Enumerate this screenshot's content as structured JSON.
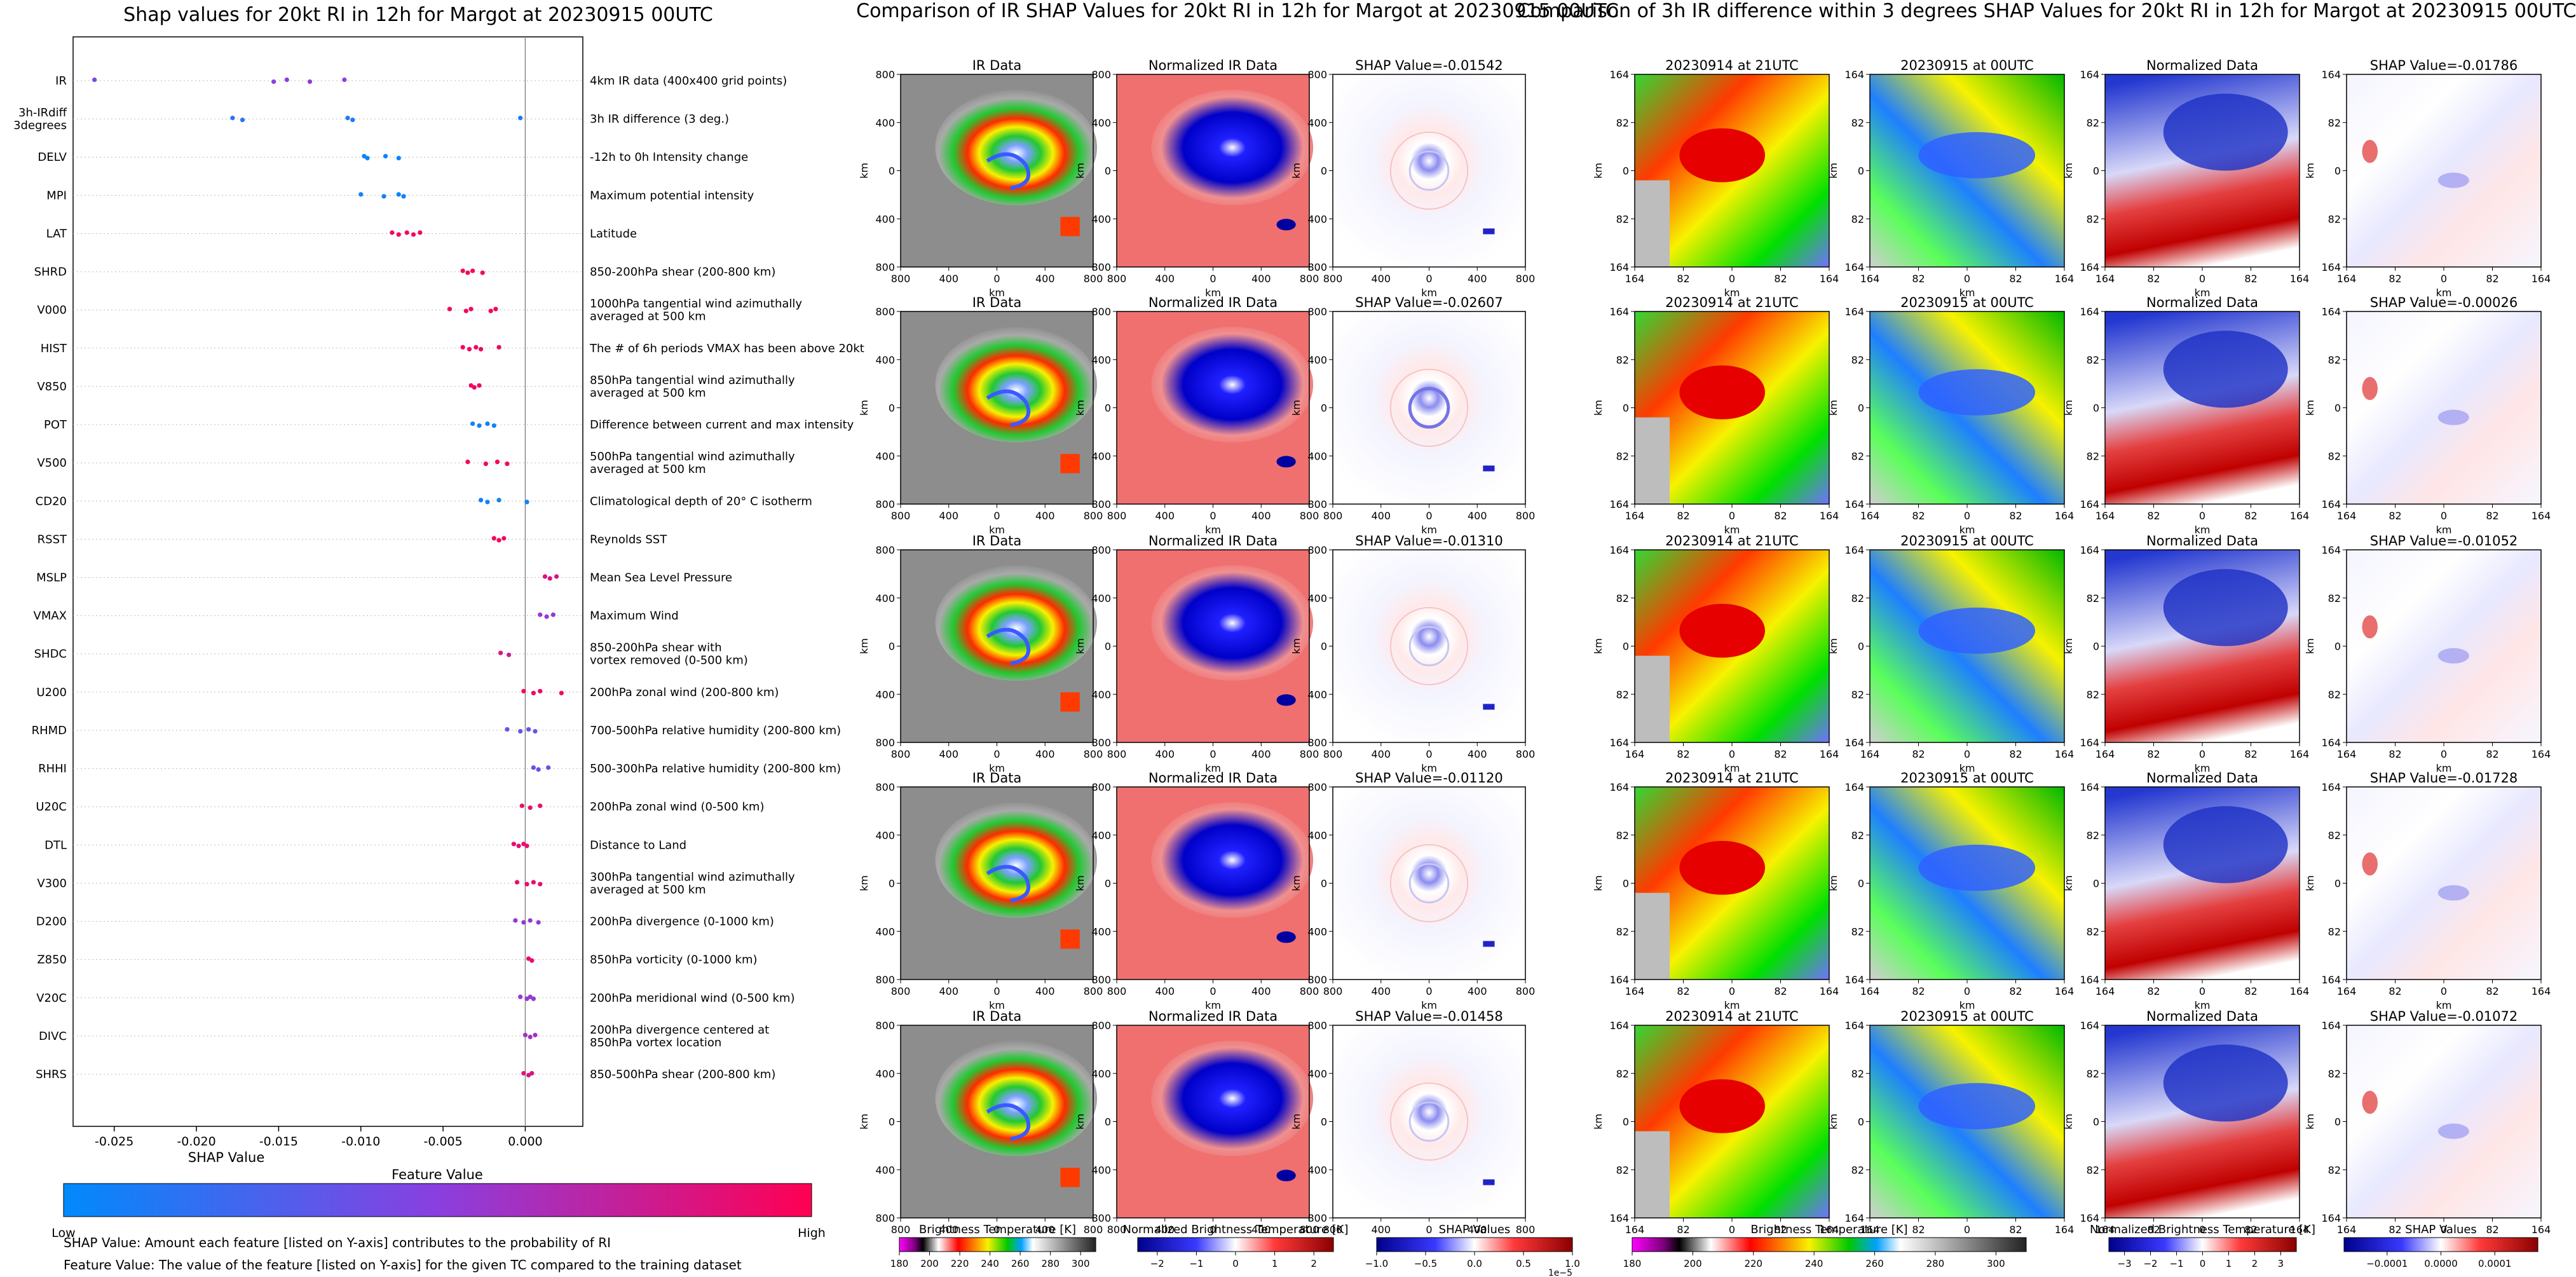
{
  "chart_data": [
    {
      "type": "scatter",
      "title": "Shap values for 20kt RI in 12h for Margot at 20230915 00UTC",
      "xlabel": "SHAP Value",
      "xlim": [
        -0.0275,
        0.0035
      ],
      "xticks": [
        "-0.025",
        "-0.020",
        "-0.015",
        "-0.010",
        "-0.005",
        "0.000"
      ],
      "xtick_values": [
        -0.025,
        -0.02,
        -0.015,
        -0.01,
        -0.005,
        0.0
      ],
      "colorbar": {
        "title": "Feature Value",
        "low": "Low",
        "high": "High",
        "colors": [
          "#008afc",
          "#8a3fe0",
          "#ff0052"
        ]
      },
      "features": [
        {
          "name": "IR",
          "description": "4km IR data (400x400 grid points)",
          "points": [
            {
              "x": -0.0262,
              "v": 0.45
            },
            {
              "x": -0.0153,
              "v": 0.5
            },
            {
              "x": -0.0145,
              "v": 0.5
            },
            {
              "x": -0.0131,
              "v": 0.55
            },
            {
              "x": -0.011,
              "v": 0.5
            }
          ]
        },
        {
          "name": "3h-IRdiff\n3degrees",
          "description": "3h IR difference (3 deg.)",
          "points": [
            {
              "x": -0.0178,
              "v": 0.15
            },
            {
              "x": -0.0172,
              "v": 0.15
            },
            {
              "x": -0.0108,
              "v": 0.1
            },
            {
              "x": -0.0105,
              "v": 0.1
            },
            {
              "x": -0.0003,
              "v": 0.1
            }
          ]
        },
        {
          "name": "DELV",
          "description": "-12h to 0h Intensity change",
          "points": [
            {
              "x": -0.0098,
              "v": 0.05
            },
            {
              "x": -0.0096,
              "v": 0.05
            },
            {
              "x": -0.0085,
              "v": 0.05
            },
            {
              "x": -0.0077,
              "v": 0.05
            }
          ]
        },
        {
          "name": "MPI",
          "description": "Maximum potential intensity",
          "points": [
            {
              "x": -0.01,
              "v": 0.05
            },
            {
              "x": -0.0086,
              "v": 0.05
            },
            {
              "x": -0.0077,
              "v": 0.05
            },
            {
              "x": -0.0074,
              "v": 0.05
            }
          ]
        },
        {
          "name": "LAT",
          "description": "Latitude",
          "points": [
            {
              "x": -0.0081,
              "v": 0.95
            },
            {
              "x": -0.0077,
              "v": 0.95
            },
            {
              "x": -0.0072,
              "v": 0.95
            },
            {
              "x": -0.0068,
              "v": 0.95
            },
            {
              "x": -0.0064,
              "v": 0.95
            }
          ]
        },
        {
          "name": "SHRD",
          "description": "850-200hPa shear (200-800 km)",
          "points": [
            {
              "x": -0.0038,
              "v": 0.95
            },
            {
              "x": -0.0035,
              "v": 0.95
            },
            {
              "x": -0.0032,
              "v": 0.95
            },
            {
              "x": -0.0026,
              "v": 0.95
            }
          ]
        },
        {
          "name": "V000",
          "description": "1000hPa tangential wind azimuthally\naveraged at 500 km",
          "points": [
            {
              "x": -0.0046,
              "v": 0.95
            },
            {
              "x": -0.0036,
              "v": 0.95
            },
            {
              "x": -0.0033,
              "v": 0.95
            },
            {
              "x": -0.0021,
              "v": 0.95
            },
            {
              "x": -0.0018,
              "v": 0.95
            }
          ]
        },
        {
          "name": "HIST",
          "description": "The # of 6h periods VMAX has been above 20kt",
          "points": [
            {
              "x": -0.0038,
              "v": 0.95
            },
            {
              "x": -0.0034,
              "v": 0.95
            },
            {
              "x": -0.003,
              "v": 0.95
            },
            {
              "x": -0.0027,
              "v": 0.95
            },
            {
              "x": -0.0016,
              "v": 0.95
            }
          ]
        },
        {
          "name": "V850",
          "description": "850hPa tangential wind azimuthally\naveraged at 500 km",
          "points": [
            {
              "x": -0.0033,
              "v": 0.95
            },
            {
              "x": -0.0031,
              "v": 0.95
            },
            {
              "x": -0.0028,
              "v": 0.95
            }
          ]
        },
        {
          "name": "POT",
          "description": "Difference between current and max intensity",
          "points": [
            {
              "x": -0.0032,
              "v": 0.05
            },
            {
              "x": -0.0028,
              "v": 0.05
            },
            {
              "x": -0.0023,
              "v": 0.05
            },
            {
              "x": -0.0019,
              "v": 0.05
            }
          ]
        },
        {
          "name": "V500",
          "description": "500hPa tangential wind azimuthally\naveraged at 500 km",
          "points": [
            {
              "x": -0.0035,
              "v": 0.95
            },
            {
              "x": -0.0024,
              "v": 0.95
            },
            {
              "x": -0.0017,
              "v": 0.95
            },
            {
              "x": -0.0011,
              "v": 0.95
            }
          ]
        },
        {
          "name": "CD20",
          "description": "Climatological depth of 20° C isotherm",
          "points": [
            {
              "x": -0.0027,
              "v": 0.05
            },
            {
              "x": -0.0023,
              "v": 0.05
            },
            {
              "x": -0.0016,
              "v": 0.05
            },
            {
              "x": 0.0001,
              "v": 0.05
            }
          ]
        },
        {
          "name": "RSST",
          "description": "Reynolds SST",
          "points": [
            {
              "x": -0.0019,
              "v": 0.95
            },
            {
              "x": -0.0016,
              "v": 0.95
            },
            {
              "x": -0.0013,
              "v": 0.95
            }
          ]
        },
        {
          "name": "MSLP",
          "description": "Mean Sea Level Pressure",
          "points": [
            {
              "x": 0.0012,
              "v": 0.85
            },
            {
              "x": 0.0015,
              "v": 0.85
            },
            {
              "x": 0.0019,
              "v": 0.85
            }
          ]
        },
        {
          "name": "VMAX",
          "description": "Maximum Wind",
          "points": [
            {
              "x": 0.0009,
              "v": 0.55
            },
            {
              "x": 0.0013,
              "v": 0.55
            },
            {
              "x": 0.0017,
              "v": 0.55
            }
          ]
        },
        {
          "name": "SHDC",
          "description": "850-200hPa shear with\nvortex removed (0-500 km)",
          "points": [
            {
              "x": -0.0015,
              "v": 0.85
            },
            {
              "x": -0.001,
              "v": 0.75
            }
          ]
        },
        {
          "name": "U200",
          "description": "200hPa zonal wind (200-800 km)",
          "points": [
            {
              "x": -0.0001,
              "v": 0.95
            },
            {
              "x": 0.0005,
              "v": 0.95
            },
            {
              "x": 0.0009,
              "v": 0.95
            },
            {
              "x": 0.0022,
              "v": 0.95
            }
          ]
        },
        {
          "name": "RHMD",
          "description": "700-500hPa relative humidity (200-800 km)",
          "points": [
            {
              "x": -0.0011,
              "v": 0.35
            },
            {
              "x": -0.0003,
              "v": 0.35
            },
            {
              "x": 0.0002,
              "v": 0.35
            },
            {
              "x": 0.0006,
              "v": 0.35
            }
          ]
        },
        {
          "name": "RHHI",
          "description": "500-300hPa relative humidity (200-800 km)",
          "points": [
            {
              "x": 0.0005,
              "v": 0.4
            },
            {
              "x": 0.0008,
              "v": 0.4
            },
            {
              "x": 0.0014,
              "v": 0.4
            }
          ]
        },
        {
          "name": "U20C",
          "description": "200hPa zonal wind (0-500 km)",
          "points": [
            {
              "x": -0.0002,
              "v": 0.9
            },
            {
              "x": 0.0003,
              "v": 0.9
            },
            {
              "x": 0.0009,
              "v": 0.9
            }
          ]
        },
        {
          "name": "DTL",
          "description": "Distance to Land",
          "points": [
            {
              "x": -0.0007,
              "v": 0.9
            },
            {
              "x": -0.0004,
              "v": 0.9
            },
            {
              "x": -0.0001,
              "v": 0.9
            },
            {
              "x": 0.0001,
              "v": 0.9
            }
          ]
        },
        {
          "name": "V300",
          "description": "300hPa tangential wind azimuthally\naveraged at 500 km",
          "points": [
            {
              "x": -0.0005,
              "v": 0.9
            },
            {
              "x": 0.0001,
              "v": 0.9
            },
            {
              "x": 0.0005,
              "v": 0.9
            },
            {
              "x": 0.0009,
              "v": 0.9
            }
          ]
        },
        {
          "name": "D200",
          "description": "200hPa divergence (0-1000 km)",
          "points": [
            {
              "x": -0.0006,
              "v": 0.55
            },
            {
              "x": -0.0001,
              "v": 0.55
            },
            {
              "x": 0.0003,
              "v": 0.55
            },
            {
              "x": 0.0008,
              "v": 0.55
            }
          ]
        },
        {
          "name": "Z850",
          "description": "850hPa vorticity (0-1000 km)",
          "points": [
            {
              "x": 0.0002,
              "v": 0.9
            },
            {
              "x": 0.0004,
              "v": 0.9
            }
          ]
        },
        {
          "name": "V20C",
          "description": "200hPa meridional wind (0-500 km)",
          "points": [
            {
              "x": -0.0003,
              "v": 0.55
            },
            {
              "x": 0.0001,
              "v": 0.55
            },
            {
              "x": 0.0003,
              "v": 0.55
            },
            {
              "x": 0.0005,
              "v": 0.55
            }
          ]
        },
        {
          "name": "DIVC",
          "description": "200hPa divergence centered at\n850hPa vortex location",
          "points": [
            {
              "x": 0.0,
              "v": 0.6
            },
            {
              "x": 0.0003,
              "v": 0.6
            },
            {
              "x": 0.0006,
              "v": 0.6
            }
          ]
        },
        {
          "name": "SHRS",
          "description": "850-500hPa shear (200-800 km)",
          "points": [
            {
              "x": -0.0001,
              "v": 0.85
            },
            {
              "x": 0.0002,
              "v": 0.85
            },
            {
              "x": 0.0004,
              "v": 0.85
            }
          ]
        }
      ]
    },
    {
      "type": "heatmap",
      "title": "Comparison of IR SHAP Values for 20kt RI in 12h for Margot at 20230915 00UTC",
      "columns": [
        {
          "panel_title": "IR Data",
          "kind": "ir",
          "xticks": [
            "800",
            "400",
            "0",
            "400",
            "800"
          ],
          "yticks": [
            "800",
            "400",
            "0",
            "400",
            "800"
          ],
          "xlabel": "km",
          "ylabel": "km"
        },
        {
          "panel_title": "Normalized IR Data",
          "kind": "irnorm",
          "xticks": [
            "800",
            "400",
            "0",
            "400",
            "800"
          ],
          "yticks": [
            "800",
            "400",
            "0",
            "400",
            "800"
          ],
          "xlabel": "km",
          "ylabel": "km"
        },
        {
          "panel_title": "SHAP Value",
          "kind": "shap",
          "xticks": [
            "800",
            "400",
            "0",
            "400",
            "800"
          ],
          "yticks": [
            "800",
            "400",
            "0",
            "400",
            "800"
          ],
          "xlabel": "km",
          "ylabel": "km"
        }
      ],
      "shap_values": [
        "-0.01542",
        "-0.02607",
        "-0.01310",
        "-0.01120",
        "-0.01458"
      ],
      "colorbars": [
        {
          "label": "Brightness Temperature [K]",
          "ticks": [
            "180",
            "200",
            "220",
            "240",
            "260",
            "280",
            "300"
          ],
          "tick_values": [
            180,
            200,
            220,
            240,
            260,
            280,
            300
          ],
          "range": [
            180,
            310
          ],
          "kind": "ir"
        },
        {
          "label": "Normalized Brightness Temperature [K]",
          "ticks": [
            "−2",
            "−1",
            "0",
            "1",
            "2"
          ],
          "tick_values": [
            -2,
            -1,
            0,
            1,
            2
          ],
          "range": [
            -2.5,
            2.5
          ],
          "kind": "div"
        },
        {
          "label": "SHAP Values",
          "ticks": [
            "−1.0",
            "−0.5",
            "0.0",
            "0.5",
            "1.0"
          ],
          "tick_values": [
            -1,
            -0.5,
            0,
            0.5,
            1
          ],
          "range": [
            -1,
            1
          ],
          "kind": "div",
          "offset": "1e−5"
        }
      ]
    },
    {
      "type": "heatmap",
      "title": "Comparison of 3h IR difference within 3 degrees SHAP Values for 20kt RI in 12h for Margot at 20230915 00UTC",
      "columns": [
        {
          "panel_title": "20230914 at 21UTC",
          "kind": "irsmall",
          "xticks": [
            "164",
            "82",
            "0",
            "82",
            "164"
          ],
          "yticks": [
            "164",
            "82",
            "0",
            "82",
            "164"
          ],
          "xlabel": "km",
          "ylabel": "km"
        },
        {
          "panel_title": "20230915 at 00UTC",
          "kind": "irsmall2",
          "xticks": [
            "164",
            "82",
            "0",
            "82",
            "164"
          ],
          "yticks": [
            "164",
            "82",
            "0",
            "82",
            "164"
          ],
          "xlabel": "km",
          "ylabel": "km"
        },
        {
          "panel_title": "Normalized Data",
          "kind": "normsmall",
          "xticks": [
            "164",
            "82",
            "0",
            "82",
            "164"
          ],
          "yticks": [
            "164",
            "82",
            "0",
            "82",
            "164"
          ],
          "xlabel": "km",
          "ylabel": "km"
        },
        {
          "panel_title": "SHAP Value",
          "kind": "shapsmall",
          "xticks": [
            "164",
            "82",
            "0",
            "82",
            "164"
          ],
          "yticks": [
            "164",
            "82",
            "0",
            "82",
            "164"
          ],
          "xlabel": "km",
          "ylabel": "km"
        }
      ],
      "shap_values": [
        "-0.01786",
        "-0.00026",
        "-0.01052",
        "-0.01728",
        "-0.01072"
      ],
      "colorbars": [
        {
          "label": "Brightness Temperature [K]",
          "ticks": [
            "180",
            "200",
            "220",
            "240",
            "260",
            "280",
            "300"
          ],
          "tick_values": [
            180,
            200,
            220,
            240,
            260,
            280,
            300
          ],
          "range": [
            180,
            310
          ],
          "kind": "ir"
        },
        {
          "label": "Normalized Brightness Temperature [K]",
          "ticks": [
            "−3",
            "−2",
            "−1",
            "0",
            "1",
            "2",
            "3"
          ],
          "tick_values": [
            -3,
            -2,
            -1,
            0,
            1,
            2,
            3
          ],
          "range": [
            -3.6,
            3.6
          ],
          "kind": "div"
        },
        {
          "label": "SHAP Values",
          "ticks": [
            "−0.0001",
            "0.0000",
            "0.0001"
          ],
          "tick_values": [
            -0.0001,
            0,
            0.0001
          ],
          "range": [
            -0.00018,
            0.00018
          ],
          "kind": "div"
        }
      ]
    }
  ],
  "notes": {
    "shap": "SHAP Value: Amount each feature [listed on Y-axis] contributes to the probability of RI",
    "feature": "Feature Value: The value of the feature [listed on Y-axis] for the given TC compared to the training dataset"
  }
}
